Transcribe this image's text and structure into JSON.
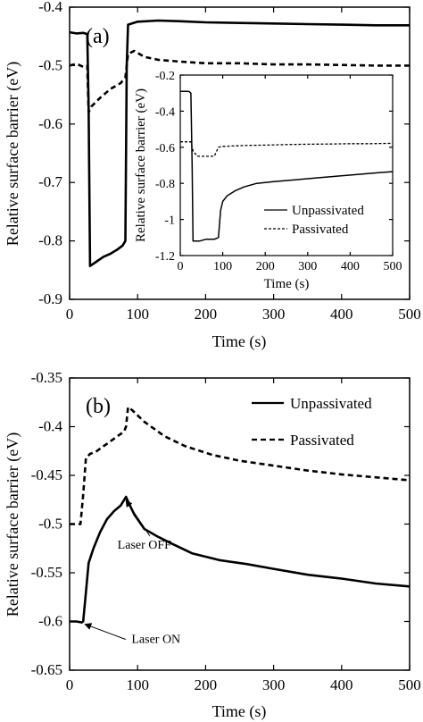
{
  "chart_data": [
    {
      "id": "a",
      "type": "line",
      "panel_label": "(a)",
      "xlabel": "Time (s)",
      "ylabel": "Relative surface barrier (eV)",
      "xlim": [
        0,
        500
      ],
      "ylim": [
        -0.9,
        -0.4
      ],
      "xticks": [
        "0",
        "100",
        "200",
        "300",
        "400",
        "500"
      ],
      "yticks": [
        "-0.9",
        "-0.8",
        "-0.7",
        "-0.6",
        "-0.5",
        "-0.4"
      ],
      "series": [
        {
          "style": "solid",
          "points": [
            [
              0,
              -0.443
            ],
            [
              10,
              -0.445
            ],
            [
              20,
              -0.444
            ],
            [
              26,
              -0.446
            ],
            [
              28,
              -0.57
            ],
            [
              30,
              -0.843
            ],
            [
              40,
              -0.835
            ],
            [
              50,
              -0.827
            ],
            [
              60,
              -0.822
            ],
            [
              70,
              -0.815
            ],
            [
              78,
              -0.808
            ],
            [
              82,
              -0.8
            ],
            [
              84,
              -0.5
            ],
            [
              86,
              -0.43
            ],
            [
              100,
              -0.425
            ],
            [
              130,
              -0.423
            ],
            [
              160,
              -0.424
            ],
            [
              200,
              -0.426
            ],
            [
              250,
              -0.427
            ],
            [
              300,
              -0.428
            ],
            [
              350,
              -0.429
            ],
            [
              400,
              -0.43
            ],
            [
              450,
              -0.431
            ],
            [
              500,
              -0.431
            ]
          ]
        },
        {
          "style": "dashed",
          "points": [
            [
              0,
              -0.5
            ],
            [
              10,
              -0.497
            ],
            [
              20,
              -0.502
            ],
            [
              26,
              -0.5
            ],
            [
              28,
              -0.58
            ],
            [
              32,
              -0.57
            ],
            [
              45,
              -0.555
            ],
            [
              60,
              -0.54
            ],
            [
              75,
              -0.53
            ],
            [
              82,
              -0.52
            ],
            [
              86,
              -0.48
            ],
            [
              95,
              -0.475
            ],
            [
              110,
              -0.485
            ],
            [
              130,
              -0.49
            ],
            [
              160,
              -0.493
            ],
            [
              200,
              -0.496
            ],
            [
              250,
              -0.496
            ],
            [
              300,
              -0.498
            ],
            [
              350,
              -0.498
            ],
            [
              400,
              -0.499
            ],
            [
              450,
              -0.5
            ],
            [
              500,
              -0.5
            ]
          ]
        }
      ],
      "inset": {
        "type": "line",
        "xlabel": "Time (s)",
        "ylabel": "Relative surface barrier (eV)",
        "xlim": [
          0,
          500
        ],
        "ylim": [
          -1.2,
          -0.2
        ],
        "xticks": [
          "0",
          "100",
          "200",
          "300",
          "400",
          "500"
        ],
        "yticks": [
          "-1.2",
          "-1",
          "-0.8",
          "-0.6",
          "-0.4",
          "-0.2"
        ],
        "legend": [
          "Unpassivated",
          "Passivated"
        ],
        "series": [
          {
            "name": "Unpassivated",
            "style": "solid",
            "points": [
              [
                0,
                -0.29
              ],
              [
                20,
                -0.29
              ],
              [
                25,
                -0.3
              ],
              [
                28,
                -0.7
              ],
              [
                30,
                -1.12
              ],
              [
                45,
                -1.12
              ],
              [
                60,
                -1.11
              ],
              [
                80,
                -1.11
              ],
              [
                90,
                -1.1
              ],
              [
                95,
                -0.95
              ],
              [
                100,
                -0.9
              ],
              [
                110,
                -0.87
              ],
              [
                130,
                -0.84
              ],
              [
                150,
                -0.82
              ],
              [
                180,
                -0.8
              ],
              [
                220,
                -0.79
              ],
              [
                270,
                -0.78
              ],
              [
                320,
                -0.77
              ],
              [
                370,
                -0.76
              ],
              [
                420,
                -0.75
              ],
              [
                470,
                -0.74
              ],
              [
                500,
                -0.735
              ]
            ]
          },
          {
            "name": "Passivated",
            "style": "dashed",
            "points": [
              [
                0,
                -0.57
              ],
              [
                25,
                -0.57
              ],
              [
                30,
                -0.62
              ],
              [
                40,
                -0.65
              ],
              [
                80,
                -0.65
              ],
              [
                90,
                -0.6
              ],
              [
                100,
                -0.595
              ],
              [
                150,
                -0.59
              ],
              [
                200,
                -0.588
              ],
              [
                250,
                -0.585
              ],
              [
                300,
                -0.583
              ],
              [
                350,
                -0.582
              ],
              [
                400,
                -0.58
              ],
              [
                450,
                -0.58
              ],
              [
                500,
                -0.578
              ]
            ]
          }
        ]
      }
    },
    {
      "id": "b",
      "type": "line",
      "panel_label": "(b)",
      "xlabel": "Time (s)",
      "ylabel": "Relative surface barrier (eV)",
      "xlim": [
        0,
        500
      ],
      "ylim": [
        -0.65,
        -0.35
      ],
      "xticks": [
        "0",
        "100",
        "200",
        "300",
        "400",
        "500"
      ],
      "yticks": [
        "-0.65",
        "-0.6",
        "-0.55",
        "-0.5",
        "-0.45",
        "-0.4",
        "-0.35"
      ],
      "legend": [
        "Unpassivated",
        "Passivated"
      ],
      "series": [
        {
          "name": "Unpassivated",
          "style": "solid",
          "points": [
            [
              0,
              -0.6
            ],
            [
              10,
              -0.6
            ],
            [
              18,
              -0.601
            ],
            [
              20,
              -0.6
            ],
            [
              24,
              -0.57
            ],
            [
              28,
              -0.54
            ],
            [
              35,
              -0.525
            ],
            [
              45,
              -0.508
            ],
            [
              55,
              -0.495
            ],
            [
              65,
              -0.487
            ],
            [
              75,
              -0.481
            ],
            [
              83,
              -0.472
            ],
            [
              88,
              -0.48
            ],
            [
              95,
              -0.49
            ],
            [
              110,
              -0.505
            ],
            [
              130,
              -0.513
            ],
            [
              150,
              -0.52
            ],
            [
              180,
              -0.53
            ],
            [
              220,
              -0.537
            ],
            [
              260,
              -0.541
            ],
            [
              300,
              -0.546
            ],
            [
              350,
              -0.552
            ],
            [
              400,
              -0.556
            ],
            [
              450,
              -0.561
            ],
            [
              500,
              -0.564
            ]
          ]
        },
        {
          "name": "Passivated",
          "style": "dashed",
          "points": [
            [
              0,
              -0.5
            ],
            [
              10,
              -0.5
            ],
            [
              16,
              -0.5
            ],
            [
              20,
              -0.47
            ],
            [
              24,
              -0.432
            ],
            [
              30,
              -0.428
            ],
            [
              40,
              -0.425
            ],
            [
              50,
              -0.42
            ],
            [
              60,
              -0.415
            ],
            [
              70,
              -0.41
            ],
            [
              80,
              -0.405
            ],
            [
              83,
              -0.4
            ],
            [
              86,
              -0.38
            ],
            [
              92,
              -0.383
            ],
            [
              110,
              -0.395
            ],
            [
              140,
              -0.41
            ],
            [
              170,
              -0.42
            ],
            [
              210,
              -0.429
            ],
            [
              250,
              -0.435
            ],
            [
              300,
              -0.44
            ],
            [
              350,
              -0.445
            ],
            [
              400,
              -0.449
            ],
            [
              450,
              -0.452
            ],
            [
              500,
              -0.455
            ]
          ]
        }
      ],
      "annotations": [
        {
          "text": "Laser OFF",
          "x": 83,
          "y": -0.472,
          "label_x": 110,
          "label_y": -0.525
        },
        {
          "text": "Laser ON",
          "x": 20,
          "y": -0.601,
          "label_x": 127,
          "label_y": -0.622
        }
      ]
    }
  ]
}
